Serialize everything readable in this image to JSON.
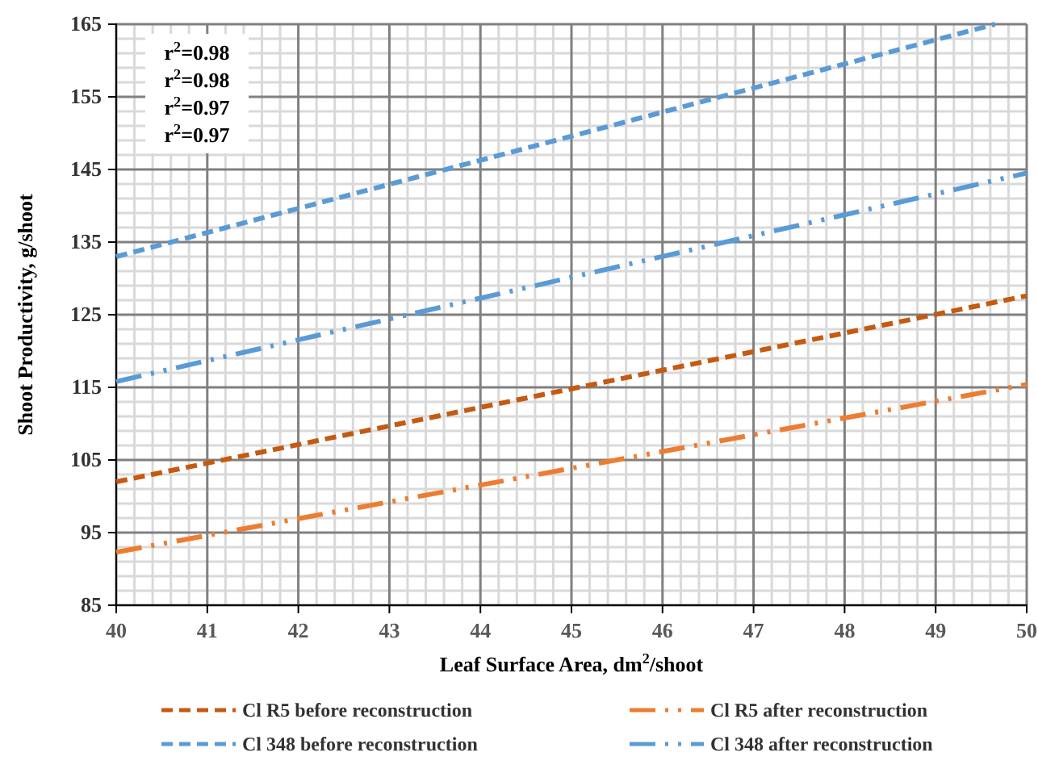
{
  "chart_data": {
    "type": "line",
    "xlabel": "Leaf Surface Area, dm$^{2}$/shoot",
    "ylabel": "Shoot Productivity, g/shoot",
    "xlim": [
      40,
      50
    ],
    "xticks": [
      40,
      41,
      42,
      43,
      44,
      45,
      46,
      47,
      48,
      49,
      50
    ],
    "ylim": [
      85,
      165
    ],
    "yticks": [
      85,
      95,
      105,
      115,
      125,
      135,
      145,
      155,
      165
    ],
    "grid": true,
    "legend": "bottom",
    "marker": "none",
    "annotations": [
      "r$^{2}$=0.98",
      "r$^{2}$=0.98",
      "r$^{2}$=0.97",
      "r$^{2}$=0.97"
    ],
    "series": [
      {
        "name": "Cl R5 before reconstruction",
        "color": "#c55a11",
        "line_style": "dashed",
        "x": [
          40,
          50
        ],
        "values": [
          102,
          127.6
        ]
      },
      {
        "name": "Cl R5 after reconstruction",
        "color": "#ed7d31",
        "line_style": "dotted",
        "x": [
          40,
          50
        ],
        "values": [
          92.3,
          115.4
        ]
      },
      {
        "name": "Cl 348 before reconstruction",
        "color": "#5b9bd5",
        "line_style": "dashed",
        "x": [
          40,
          49.65
        ],
        "values": [
          133,
          165
        ]
      },
      {
        "name": "Cl 348  after reconstruction",
        "color": "#5b9bd5",
        "line_style": "dotted",
        "x": [
          40,
          50
        ],
        "values": [
          115.8,
          144.5
        ]
      }
    ]
  }
}
